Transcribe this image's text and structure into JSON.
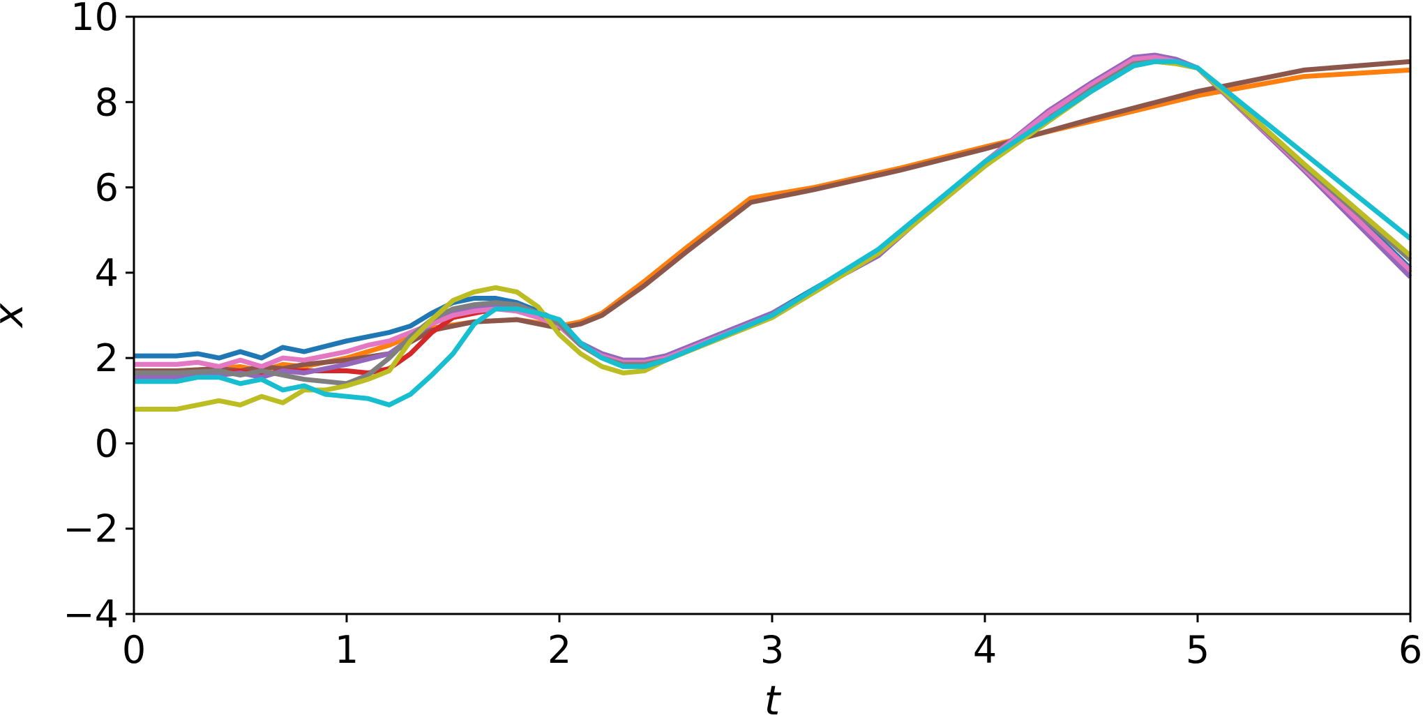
{
  "chart_data": {
    "type": "line",
    "title": "",
    "xlabel": "t",
    "ylabel": "x",
    "xlim": [
      0,
      6
    ],
    "ylim": [
      -4,
      10
    ],
    "xticks": [
      0,
      1,
      2,
      3,
      4,
      5,
      6
    ],
    "yticks": [
      -4,
      -2,
      0,
      2,
      4,
      6,
      8,
      10
    ],
    "grid": false,
    "legend": "none",
    "series": [
      {
        "color": "#ff7f0e",
        "x": [
          0,
          0.2,
          0.4,
          0.5,
          0.6,
          0.7,
          0.8,
          1.0,
          1.2,
          1.4,
          1.6,
          1.8,
          2.0,
          2.1,
          2.2,
          2.4,
          2.6,
          2.9,
          3.2,
          3.6,
          4.0,
          4.5,
          5.0,
          5.5,
          6.0
        ],
        "y": [
          1.7,
          1.7,
          1.75,
          1.8,
          1.7,
          1.85,
          1.8,
          2.0,
          2.3,
          2.7,
          2.85,
          2.9,
          2.75,
          2.85,
          3.05,
          3.8,
          4.6,
          5.75,
          6.0,
          6.45,
          6.95,
          7.55,
          8.15,
          8.6,
          8.75
        ]
      },
      {
        "color": "#8c564b",
        "x": [
          0,
          0.2,
          0.4,
          0.5,
          0.6,
          0.7,
          0.8,
          1.0,
          1.2,
          1.4,
          1.6,
          1.8,
          2.0,
          2.1,
          2.2,
          2.4,
          2.6,
          2.9,
          3.2,
          3.6,
          4.0,
          4.5,
          5.0,
          5.5,
          6.0
        ],
        "y": [
          1.7,
          1.7,
          1.75,
          1.7,
          1.8,
          1.75,
          1.85,
          1.95,
          2.1,
          2.65,
          2.85,
          2.9,
          2.7,
          2.8,
          3.0,
          3.7,
          4.5,
          5.65,
          5.95,
          6.4,
          6.9,
          7.6,
          8.25,
          8.75,
          8.95
        ]
      },
      {
        "color": "#1f77b4",
        "x": [
          0,
          0.2,
          0.3,
          0.4,
          0.5,
          0.6,
          0.7,
          0.8,
          1.0,
          1.2,
          1.3,
          1.4,
          1.5,
          1.6,
          1.7,
          1.8,
          1.9,
          2.0,
          2.1,
          2.2,
          2.3,
          2.4,
          2.5,
          3.0,
          3.5,
          4.0,
          4.3,
          4.5,
          4.7,
          4.8,
          4.9,
          5.0,
          5.5,
          6.0
        ],
        "y": [
          2.05,
          2.05,
          2.1,
          2.0,
          2.15,
          2.0,
          2.25,
          2.15,
          2.4,
          2.6,
          2.75,
          3.05,
          3.3,
          3.4,
          3.4,
          3.3,
          3.1,
          2.85,
          2.35,
          2.1,
          1.95,
          1.95,
          2.05,
          3.05,
          4.5,
          6.6,
          7.7,
          8.35,
          8.95,
          9.0,
          8.95,
          8.8,
          6.5,
          4.1
        ]
      },
      {
        "color": "#d62728",
        "x": [
          0,
          0.2,
          0.4,
          0.5,
          0.6,
          0.7,
          0.8,
          1.0,
          1.1,
          1.2,
          1.3,
          1.4,
          1.5,
          1.6,
          1.7,
          1.8,
          1.9,
          2.0,
          2.1,
          2.2,
          2.3,
          2.4,
          2.5,
          3.0,
          3.5,
          4.0,
          4.3,
          4.5,
          4.7,
          4.8,
          4.9,
          5.0,
          5.5,
          6.0
        ],
        "y": [
          1.6,
          1.6,
          1.65,
          1.7,
          1.6,
          1.7,
          1.7,
          1.7,
          1.65,
          1.75,
          2.1,
          2.6,
          2.95,
          3.05,
          3.15,
          3.15,
          3.0,
          2.75,
          2.3,
          2.05,
          1.9,
          1.9,
          2.0,
          3.0,
          4.45,
          6.55,
          7.65,
          8.35,
          8.95,
          9.0,
          8.95,
          8.8,
          6.45,
          4.0
        ]
      },
      {
        "color": "#9467bd",
        "x": [
          0,
          0.2,
          0.4,
          0.5,
          0.6,
          0.7,
          0.8,
          1.0,
          1.2,
          1.3,
          1.4,
          1.5,
          1.6,
          1.7,
          1.8,
          1.9,
          2.0,
          2.1,
          2.2,
          2.3,
          2.4,
          2.5,
          3.0,
          3.5,
          4.0,
          4.3,
          4.5,
          4.7,
          4.8,
          4.9,
          5.0,
          5.5,
          6.0
        ],
        "y": [
          1.55,
          1.55,
          1.6,
          1.65,
          1.55,
          1.7,
          1.65,
          1.85,
          2.1,
          2.45,
          2.8,
          3.05,
          3.15,
          3.2,
          3.15,
          3.0,
          2.8,
          2.35,
          2.1,
          1.95,
          1.95,
          2.05,
          3.05,
          4.4,
          6.6,
          7.8,
          8.45,
          9.05,
          9.1,
          9.0,
          8.8,
          6.4,
          3.9
        ]
      },
      {
        "color": "#e377c2",
        "x": [
          0,
          0.2,
          0.3,
          0.4,
          0.5,
          0.6,
          0.7,
          0.8,
          1.0,
          1.1,
          1.2,
          1.3,
          1.4,
          1.5,
          1.6,
          1.7,
          1.8,
          1.9,
          2.0,
          2.1,
          2.2,
          2.3,
          2.4,
          2.5,
          3.0,
          3.5,
          4.0,
          4.3,
          4.5,
          4.7,
          4.8,
          4.9,
          5.0,
          5.5,
          6.0
        ],
        "y": [
          1.85,
          1.85,
          1.9,
          1.8,
          1.95,
          1.8,
          2.0,
          1.95,
          2.15,
          2.3,
          2.4,
          2.6,
          2.8,
          3.0,
          3.1,
          3.15,
          3.1,
          2.95,
          2.75,
          2.3,
          2.05,
          1.9,
          1.9,
          2.0,
          3.0,
          4.5,
          6.6,
          7.75,
          8.4,
          9.0,
          9.05,
          8.95,
          8.8,
          6.45,
          4.05
        ]
      },
      {
        "color": "#7f7f7f",
        "x": [
          0,
          0.2,
          0.4,
          0.5,
          0.6,
          0.7,
          0.8,
          1.0,
          1.1,
          1.2,
          1.3,
          1.4,
          1.5,
          1.6,
          1.7,
          1.8,
          1.9,
          2.0,
          2.1,
          2.2,
          2.3,
          2.4,
          2.5,
          3.0,
          3.5,
          4.0,
          4.3,
          4.5,
          4.7,
          4.8,
          4.9,
          5.0,
          5.5,
          6.0
        ],
        "y": [
          1.65,
          1.65,
          1.7,
          1.6,
          1.7,
          1.6,
          1.5,
          1.4,
          1.6,
          2.0,
          2.5,
          2.9,
          3.15,
          3.25,
          3.3,
          3.25,
          3.05,
          2.8,
          2.3,
          2.0,
          1.85,
          1.85,
          1.95,
          2.95,
          4.45,
          6.5,
          7.6,
          8.3,
          8.9,
          8.95,
          8.9,
          8.8,
          6.5,
          4.3
        ]
      },
      {
        "color": "#bcbd22",
        "x": [
          0,
          0.2,
          0.3,
          0.4,
          0.5,
          0.6,
          0.7,
          0.8,
          0.9,
          1.0,
          1.1,
          1.2,
          1.3,
          1.4,
          1.5,
          1.6,
          1.7,
          1.8,
          1.9,
          2.0,
          2.1,
          2.2,
          2.3,
          2.4,
          2.5,
          3.0,
          3.5,
          4.0,
          4.3,
          4.5,
          4.7,
          4.8,
          4.9,
          5.0,
          5.5,
          6.0
        ],
        "y": [
          0.8,
          0.8,
          0.9,
          1.0,
          0.9,
          1.1,
          0.95,
          1.25,
          1.25,
          1.35,
          1.5,
          1.7,
          2.4,
          2.9,
          3.35,
          3.55,
          3.65,
          3.55,
          3.2,
          2.55,
          2.1,
          1.8,
          1.65,
          1.7,
          1.95,
          2.95,
          4.45,
          6.5,
          7.55,
          8.25,
          8.85,
          8.95,
          8.9,
          8.8,
          6.55,
          4.4
        ]
      },
      {
        "color": "#17becf",
        "x": [
          0,
          0.2,
          0.3,
          0.4,
          0.5,
          0.6,
          0.7,
          0.8,
          0.9,
          1.0,
          1.1,
          1.2,
          1.3,
          1.4,
          1.5,
          1.6,
          1.7,
          1.8,
          1.9,
          2.0,
          2.1,
          2.2,
          2.3,
          2.4,
          2.5,
          3.0,
          3.5,
          4.0,
          4.3,
          4.5,
          4.7,
          4.8,
          4.9,
          5.0,
          5.5,
          6.0
        ],
        "y": [
          1.45,
          1.45,
          1.55,
          1.55,
          1.4,
          1.5,
          1.25,
          1.35,
          1.15,
          1.1,
          1.05,
          0.9,
          1.15,
          1.6,
          2.1,
          2.8,
          3.15,
          3.15,
          3.05,
          2.9,
          2.35,
          2.0,
          1.8,
          1.8,
          1.95,
          3.0,
          4.55,
          6.6,
          7.6,
          8.25,
          8.85,
          8.95,
          8.95,
          8.8,
          6.8,
          4.8
        ]
      }
    ]
  }
}
